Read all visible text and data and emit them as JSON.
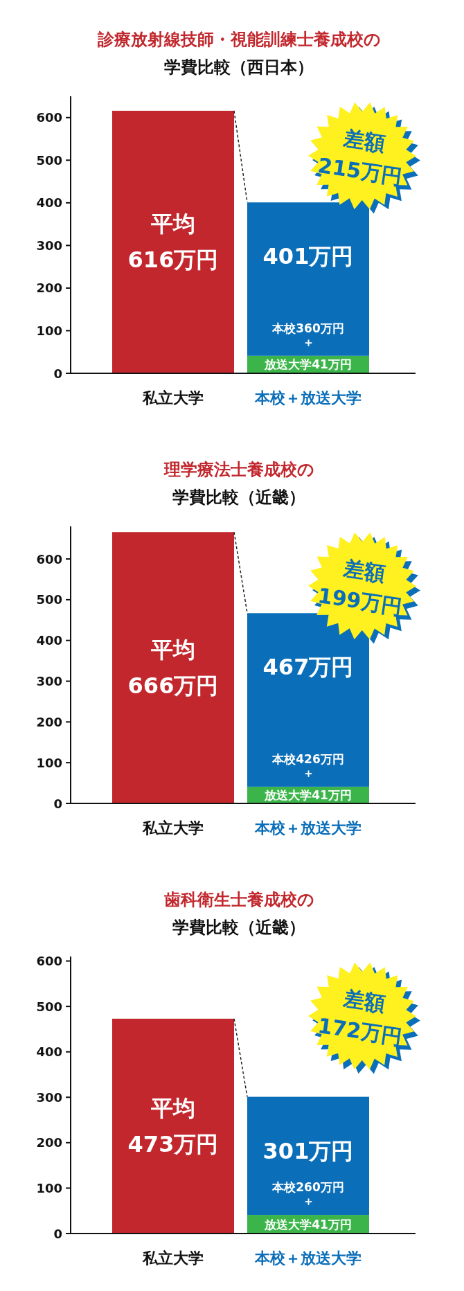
{
  "chart_data": [
    {
      "type": "bar",
      "stacked": true,
      "title": "診療放射線技師・視能訓練士養成校の",
      "subtitle": "学費比較（西日本）",
      "categories": [
        "私立大学",
        "本校＋放送大学"
      ],
      "ylim": [
        0,
        650
      ],
      "yticks": [
        0,
        100,
        200,
        300,
        400,
        500,
        600
      ],
      "series": [
        {
          "color": "#c1272d",
          "values": [
            616,
            null
          ],
          "value_labels": [
            "平均\n616万円",
            null
          ]
        },
        {
          "color": "#3bb54a",
          "values": [
            null,
            41
          ],
          "value_labels": [
            null,
            "放送大学41万円"
          ]
        },
        {
          "color": "#0a6eb9",
          "values": [
            null,
            360
          ],
          "value_labels": [
            null,
            "本校360万円＋"
          ]
        }
      ],
      "totals": [
        null,
        "401万円"
      ],
      "annotations": [
        "差額\n215万円"
      ]
    },
    {
      "type": "bar",
      "stacked": true,
      "title": "理学療法士養成校の",
      "subtitle": "学費比較（近畿）",
      "categories": [
        "私立大学",
        "本校＋放送大学"
      ],
      "ylim": [
        0,
        680
      ],
      "yticks": [
        0,
        100,
        200,
        300,
        400,
        500,
        600
      ],
      "series": [
        {
          "color": "#c1272d",
          "values": [
            666,
            null
          ],
          "value_labels": [
            "平均\n666万円",
            null
          ]
        },
        {
          "color": "#3bb54a",
          "values": [
            null,
            41
          ],
          "value_labels": [
            null,
            "放送大学41万円"
          ]
        },
        {
          "color": "#0a6eb9",
          "values": [
            null,
            426
          ],
          "value_labels": [
            null,
            "本校426万円＋"
          ]
        }
      ],
      "totals": [
        null,
        "467万円"
      ],
      "annotations": [
        "差額\n199万円"
      ]
    },
    {
      "type": "bar",
      "stacked": true,
      "title": "歯科衛生士養成校の",
      "subtitle": "学費比較（近畿）",
      "categories": [
        "私立大学",
        "本校＋放送大学"
      ],
      "ylim": [
        0,
        610
      ],
      "yticks": [
        0,
        100,
        200,
        300,
        400,
        500,
        600
      ],
      "series": [
        {
          "color": "#c1272d",
          "values": [
            473,
            null
          ],
          "value_labels": [
            "平均\n473万円",
            null
          ]
        },
        {
          "color": "#3bb54a",
          "values": [
            null,
            41
          ],
          "value_labels": [
            null,
            "放送大学41万円"
          ]
        },
        {
          "color": "#0a6eb9",
          "values": [
            null,
            260
          ],
          "value_labels": [
            null,
            "本校260万円＋"
          ]
        }
      ],
      "totals": [
        null,
        "301万円"
      ],
      "annotations": [
        "差額\n172万円"
      ]
    }
  ]
}
